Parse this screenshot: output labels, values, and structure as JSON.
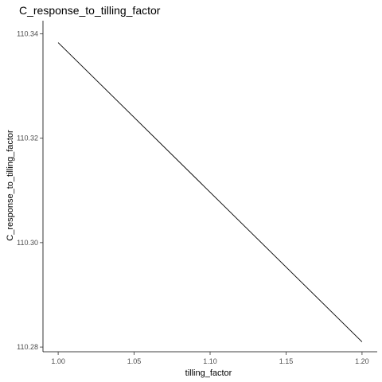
{
  "chart_data": {
    "type": "line",
    "title": "C_response_to_tilling_factor",
    "xlabel": "tilling_factor",
    "ylabel": "C_response_to_tilling_factor",
    "xlim": [
      0.99,
      1.21
    ],
    "ylim": [
      110.2791,
      110.3425
    ],
    "xticks": [
      1.0,
      1.05,
      1.1,
      1.15,
      1.2
    ],
    "xtick_labels": [
      "1.00",
      "1.05",
      "1.10",
      "1.15",
      "1.20"
    ],
    "yticks": [
      110.28,
      110.3,
      110.32,
      110.34
    ],
    "ytick_labels": [
      "110.28",
      "110.30",
      "110.32",
      "110.34"
    ],
    "grid": false,
    "series": [
      {
        "name": "C_response_to_tilling_factor",
        "color": "#000000",
        "x": [
          1.0,
          1.2
        ],
        "y": [
          110.3383,
          110.281
        ]
      }
    ]
  }
}
